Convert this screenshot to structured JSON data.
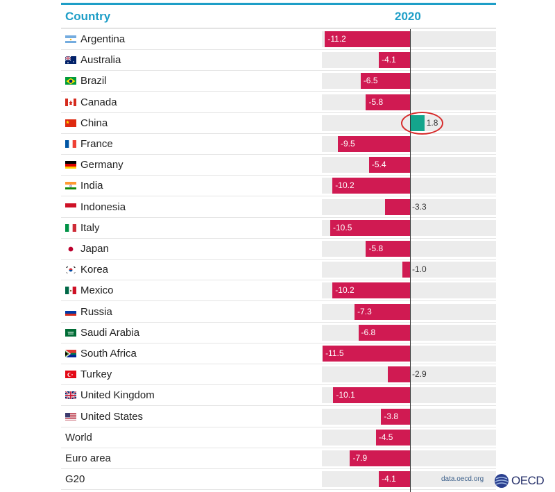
{
  "header": {
    "country_label": "Country",
    "year_label": "2020"
  },
  "source_text": "data.oecd.org",
  "logo_text": "OECD",
  "colors": {
    "negative": "#d01a52",
    "positive": "#14a58c",
    "accent": "#1e9ec7",
    "highlight": "#d62b2b"
  },
  "highlighted_category": "China",
  "chart_data": {
    "type": "bar",
    "orientation": "horizontal",
    "categories": [
      "Argentina",
      "Australia",
      "Brazil",
      "Canada",
      "China",
      "France",
      "Germany",
      "India",
      "Indonesia",
      "Italy",
      "Japan",
      "Korea",
      "Mexico",
      "Russia",
      "Saudi Arabia",
      "South Africa",
      "Turkey",
      "United Kingdom",
      "United States",
      "World",
      "Euro area",
      "G20"
    ],
    "values": [
      -11.2,
      -4.1,
      -6.5,
      -5.8,
      1.8,
      -9.5,
      -5.4,
      -10.2,
      -3.3,
      -10.5,
      -5.8,
      -1.0,
      -10.2,
      -7.3,
      -6.8,
      -11.5,
      -2.9,
      -10.1,
      -3.8,
      -4.5,
      -7.9,
      -4.1
    ],
    "labels": [
      "-11.2",
      "-4.1",
      "-6.5",
      "-5.8",
      "1.8",
      "-9.5",
      "-5.4",
      "-10.2",
      "-3.3",
      "-10.5",
      "-5.8",
      "-1.0",
      "-10.2",
      "-7.3",
      "-6.8",
      "-11.5",
      "-2.9",
      "-10.1",
      "-3.8",
      "-4.5",
      "-7.9",
      "-4.1"
    ],
    "flags": [
      "argentina-flag-icon",
      "australia-flag-icon",
      "brazil-flag-icon",
      "canada-flag-icon",
      "china-flag-icon",
      "france-flag-icon",
      "germany-flag-icon",
      "india-flag-icon",
      "indonesia-flag-icon",
      "italy-flag-icon",
      "japan-flag-icon",
      "korea-flag-icon",
      "mexico-flag-icon",
      "russia-flag-icon",
      "saudi-arabia-flag-icon",
      "south-africa-flag-icon",
      "turkey-flag-icon",
      "united-kingdom-flag-icon",
      "united-states-flag-icon",
      "",
      "",
      ""
    ],
    "xlim": [
      -11.5,
      10.0
    ],
    "grid": false,
    "legend": "none"
  }
}
